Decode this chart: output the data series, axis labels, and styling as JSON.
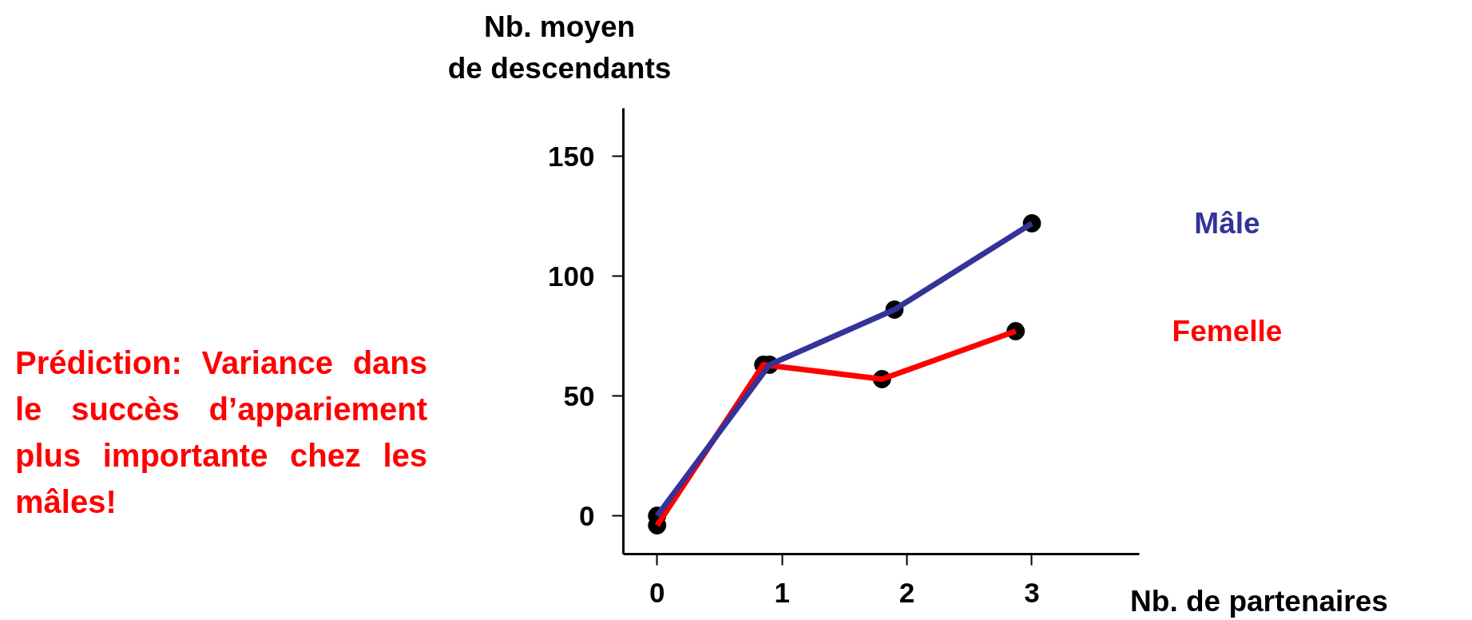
{
  "chart_data": {
    "type": "line",
    "ylabel": "Nb. moyen\nde descendants",
    "xlabel": "Nb. de partenaires",
    "xlim": [
      -0.27,
      3.86
    ],
    "xticks": [
      0,
      1,
      2,
      3
    ],
    "ylim": [
      -16,
      170
    ],
    "yticks": [
      0,
      50,
      100,
      150
    ],
    "grid": false,
    "marker": "circle",
    "series": [
      {
        "name": "Mâle",
        "color": "#333399",
        "x": [
          0,
          0.9,
          1.9,
          3
        ],
        "values": [
          0,
          63,
          86,
          122
        ]
      },
      {
        "name": "Femelle",
        "color": "#ff0000",
        "x": [
          0,
          0.85,
          1.8,
          2.87
        ],
        "values": [
          -4,
          63,
          57,
          77
        ]
      }
    ],
    "annotations": [
      "Prédiction: Variance dans le succès d’appariement plus importante chez les mâles!"
    ]
  }
}
